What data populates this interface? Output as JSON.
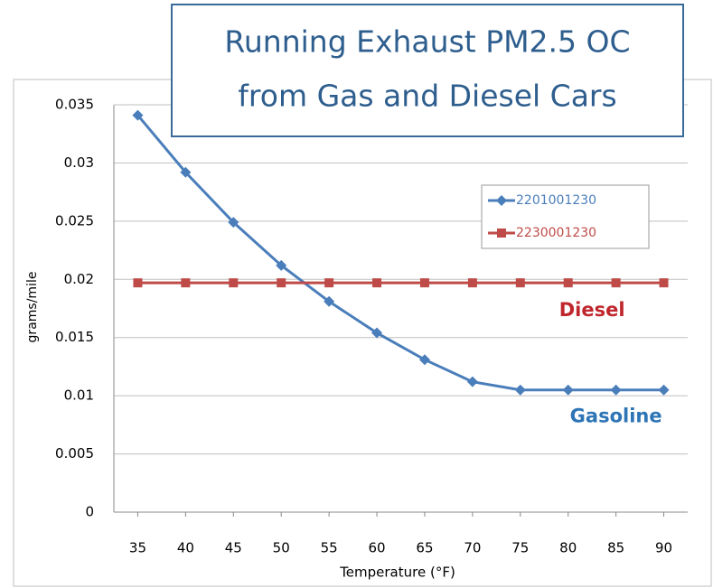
{
  "chart_data": {
    "type": "line",
    "title": [
      "Running Exhaust PM2.5 OC",
      "from Gas and Diesel Cars"
    ],
    "x_label": "Temperature (°F)",
    "y_label": "grams/mile",
    "x": [
      35,
      40,
      45,
      50,
      55,
      60,
      65,
      70,
      75,
      80,
      85,
      90
    ],
    "xlim": [
      32.5,
      92.5
    ],
    "xticks": [
      35,
      40,
      45,
      50,
      55,
      60,
      65,
      70,
      75,
      80,
      85,
      90
    ],
    "ylim": [
      0,
      0.035
    ],
    "yticks": [
      0,
      0.005,
      0.01,
      0.015,
      0.02,
      0.025,
      0.03,
      0.035
    ],
    "grid": true,
    "legend": "upper right",
    "series": [
      {
        "name": "2201001230",
        "color": "#4a7ebb",
        "marker": "diamond",
        "values": [
          0.0341,
          0.0292,
          0.0249,
          0.0212,
          0.0181,
          0.0154,
          0.0131,
          0.0112,
          0.0105,
          0.0105,
          0.0105,
          0.0105
        ]
      },
      {
        "name": "2230001230",
        "color": "#be4b48",
        "marker": "square",
        "values": [
          0.0197,
          0.0197,
          0.0197,
          0.0197,
          0.0197,
          0.0197,
          0.0197,
          0.0197,
          0.0197,
          0.0197,
          0.0197,
          0.0197
        ]
      }
    ],
    "annotations": [
      {
        "text": "Diesel",
        "color": "#c0272d",
        "x": 82.5,
        "y": 0.0173
      },
      {
        "text": "Gasoline",
        "color": "#2e75b6",
        "x": 85,
        "y": 0.0082
      }
    ]
  }
}
